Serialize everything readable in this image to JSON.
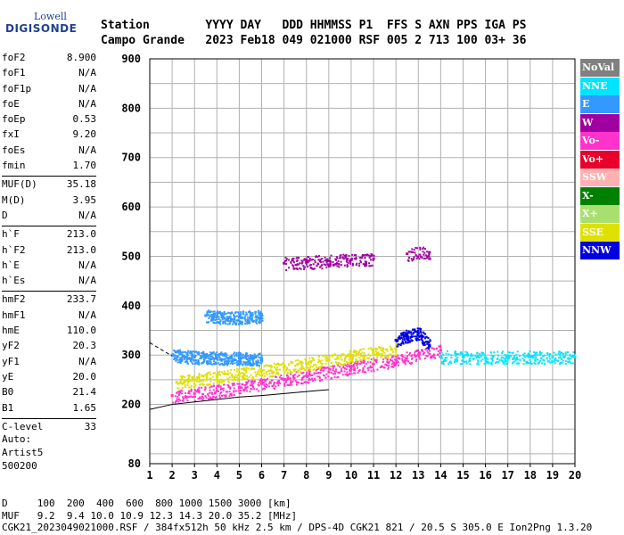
{
  "logo": {
    "line1": "Lowell",
    "line2": "DIGISONDE"
  },
  "header": {
    "labels_line": "Station        YYYY DAY   DDD HHMMSS P1  FFS S AXN PPS IGA PS",
    "values_line": "Campo Grande   2023 Feb18 049 021000 RSF 005 2 713 100 03+ 36"
  },
  "params": {
    "group1": [
      {
        "k": "foF2",
        "v": "8.900"
      },
      {
        "k": "foF1",
        "v": "N/A"
      },
      {
        "k": "foF1p",
        "v": "N/A"
      },
      {
        "k": "foE",
        "v": "N/A"
      },
      {
        "k": "foEp",
        "v": "0.53"
      },
      {
        "k": "fxI",
        "v": "9.20"
      },
      {
        "k": "foEs",
        "v": "N/A"
      },
      {
        "k": "fmin",
        "v": "1.70"
      }
    ],
    "group2": [
      {
        "k": "MUF(D)",
        "v": "35.18"
      },
      {
        "k": "M(D)",
        "v": "3.95"
      },
      {
        "k": "D",
        "v": "N/A"
      }
    ],
    "group3": [
      {
        "k": "h`F",
        "v": "213.0"
      },
      {
        "k": "h`F2",
        "v": "213.0"
      },
      {
        "k": "h`E",
        "v": "N/A"
      },
      {
        "k": "h`Es",
        "v": "N/A"
      }
    ],
    "group4": [
      {
        "k": "hmF2",
        "v": "233.7"
      },
      {
        "k": "hmF1",
        "v": "N/A"
      },
      {
        "k": "hmE",
        "v": "110.0"
      },
      {
        "k": "yF2",
        "v": "20.3"
      },
      {
        "k": "yF1",
        "v": "N/A"
      },
      {
        "k": "yE",
        "v": "20.0"
      },
      {
        "k": "B0",
        "v": "21.4"
      },
      {
        "k": "B1",
        "v": "1.65"
      }
    ],
    "group5": [
      {
        "k": "C-level",
        "v": "33"
      }
    ]
  },
  "auto": {
    "line1": "Auto:",
    "line2": "Artist5",
    "line3": "500200"
  },
  "legend": [
    {
      "label": "NoVal",
      "color": "#808080",
      "text": "#ffffff"
    },
    {
      "label": "NNE",
      "color": "#00e5ff",
      "text": "#ffffff"
    },
    {
      "label": "E",
      "color": "#3399ff",
      "text": "#ffffff"
    },
    {
      "label": "W",
      "color": "#a000a0",
      "text": "#ffffff"
    },
    {
      "label": "Vo-",
      "color": "#ff33cc",
      "text": "#ffffff"
    },
    {
      "label": "Vo+",
      "color": "#e8002a",
      "text": "#ffffff"
    },
    {
      "label": "SSW",
      "color": "#ffb0b0",
      "text": "#ffffff"
    },
    {
      "label": "X-",
      "color": "#008000",
      "text": "#ffffff"
    },
    {
      "label": "X+",
      "color": "#a8e070",
      "text": "#ffffff"
    },
    {
      "label": "SSE",
      "color": "#e0e000",
      "text": "#ffffff"
    },
    {
      "label": "NNW",
      "color": "#0000e0",
      "text": "#ffffff"
    }
  ],
  "footer": {
    "line1": "D     100  200  400  600  800 1000 1500 3000 [km]",
    "line2": "MUF   9.2  9.4 10.0 10.9 12.3 14.3 20.0 35.2 [MHz]",
    "line3": "CGK21_2023049021000.RSF / 384fx512h 50 kHz 2.5 km / DPS-4D CGK21 821 / 20.5 S 305.0 E Ion2Png 1.3.20"
  },
  "chart_data": {
    "type": "scatter",
    "xlim": [
      1,
      20
    ],
    "ylim": [
      80,
      900
    ],
    "x_ticks": [
      1,
      2,
      3,
      4,
      5,
      6,
      7,
      8,
      9,
      10,
      11,
      12,
      13,
      14,
      15,
      16,
      17,
      18,
      19,
      20
    ],
    "y_ticks": [
      80,
      200,
      300,
      400,
      500,
      600,
      700,
      800,
      900
    ],
    "grid": true,
    "series": [
      {
        "name": "E",
        "color": "#3399ff",
        "x": [
          2.0,
          2.5,
          3.0,
          3.5,
          4.0,
          4.5,
          5.0,
          5.5,
          6.0
        ],
        "y": [
          300,
          298,
          296,
          295,
          295,
          294,
          294,
          293,
          293
        ]
      },
      {
        "name": "E",
        "color": "#3399ff",
        "x": [
          3.5,
          4.0,
          4.5,
          5.0,
          5.5,
          6.0
        ],
        "y": [
          380,
          378,
          376,
          377,
          378,
          380
        ]
      },
      {
        "name": "Vo-",
        "color": "#ff33cc",
        "x": [
          2,
          3,
          4,
          5,
          6,
          7,
          8,
          9,
          10,
          11,
          12,
          13,
          14
        ],
        "y": [
          218,
          222,
          228,
          235,
          242,
          250,
          258,
          266,
          274,
          282,
          290,
          300,
          310
        ]
      },
      {
        "name": "SSE",
        "color": "#e0e000",
        "x": [
          2.2,
          3,
          4,
          5,
          6,
          7,
          8,
          9,
          10,
          11,
          12
        ],
        "y": [
          245,
          250,
          256,
          262,
          268,
          275,
          282,
          290,
          298,
          305,
          312
        ]
      },
      {
        "name": "NNE",
        "color": "#00e5ff",
        "x": [
          14,
          15,
          16,
          17,
          18,
          19,
          20
        ],
        "y": [
          297,
          296,
          295,
          296,
          297,
          296,
          296
        ]
      },
      {
        "name": "NNW",
        "color": "#0000e0",
        "x": [
          12,
          12.5,
          13,
          13.5
        ],
        "y": [
          330,
          340,
          345,
          320
        ]
      },
      {
        "name": "W",
        "color": "#a000a0",
        "x": [
          7,
          8,
          9,
          10,
          11
        ],
        "y": [
          486,
          488,
          491,
          493,
          495
        ]
      },
      {
        "name": "W",
        "color": "#a000a0",
        "x": [
          12.5,
          13.5
        ],
        "y": [
          505,
          508
        ]
      }
    ],
    "profile_curve": {
      "x": [
        1,
        2,
        3,
        4,
        5,
        6,
        7,
        8,
        8.5,
        9
      ],
      "y": [
        190,
        200,
        205,
        210,
        215,
        218,
        222,
        226,
        228,
        230
      ]
    }
  }
}
